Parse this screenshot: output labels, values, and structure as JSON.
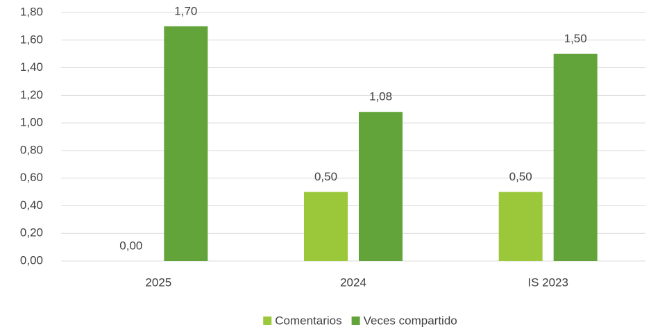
{
  "chart_data": {
    "type": "bar",
    "categories": [
      "2025",
      "2024",
      "IS 2023"
    ],
    "series": [
      {
        "name": "Comentarios",
        "color": "#9bc83b",
        "values": [
          0,
          0.5,
          0.5
        ],
        "value_labels": [
          "0,00",
          "0,50",
          "0,50"
        ]
      },
      {
        "name": "Veces compartido",
        "color": "#63a43a",
        "values": [
          1.7,
          1.08,
          1.5
        ],
        "value_labels": [
          "1,70",
          "1,08",
          "1,50"
        ]
      }
    ],
    "ylim": [
      0,
      1.8
    ],
    "yticks": [
      {
        "value": 0,
        "label": "0,00"
      },
      {
        "value": 0.2,
        "label": "0,20"
      },
      {
        "value": 0.4,
        "label": "0,40"
      },
      {
        "value": 0.6,
        "label": "0,60"
      },
      {
        "value": 0.8,
        "label": "0,80"
      },
      {
        "value": 1.0,
        "label": "1,00"
      },
      {
        "value": 1.2,
        "label": "1,20"
      },
      {
        "value": 1.4,
        "label": "1,40"
      },
      {
        "value": 1.6,
        "label": "1,60"
      },
      {
        "value": 1.8,
        "label": "1,80"
      }
    ],
    "grid": true,
    "legend": "bottom"
  }
}
